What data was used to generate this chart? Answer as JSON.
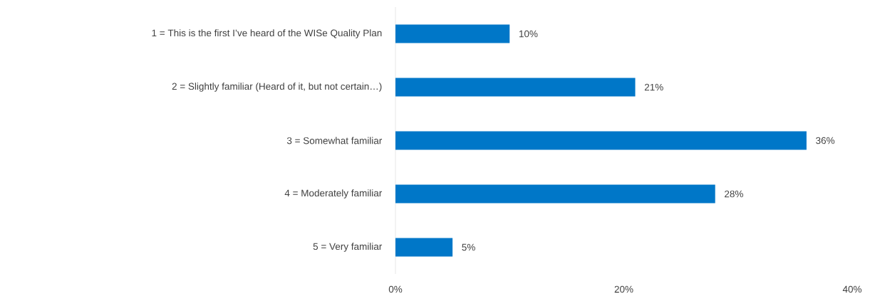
{
  "chart_data": {
    "type": "bar",
    "orientation": "horizontal",
    "categories": [
      "1 = This is the first I’ve heard of the WISe Quality Plan",
      "2 = Slightly familiar (Heard of it, but not certain…)",
      "3 = Somewhat familiar",
      "4 = Moderately familiar",
      "5 = Very familiar"
    ],
    "values": [
      10,
      21,
      36,
      28,
      5
    ],
    "value_labels": [
      "10%",
      "21%",
      "36%",
      "28%",
      "5%"
    ],
    "color": "#0077c8",
    "xlim": [
      0,
      40
    ],
    "xticks": [
      {
        "value": 0,
        "label": "0%"
      },
      {
        "value": 20,
        "label": "20%"
      },
      {
        "value": 40,
        "label": "40%"
      }
    ]
  }
}
